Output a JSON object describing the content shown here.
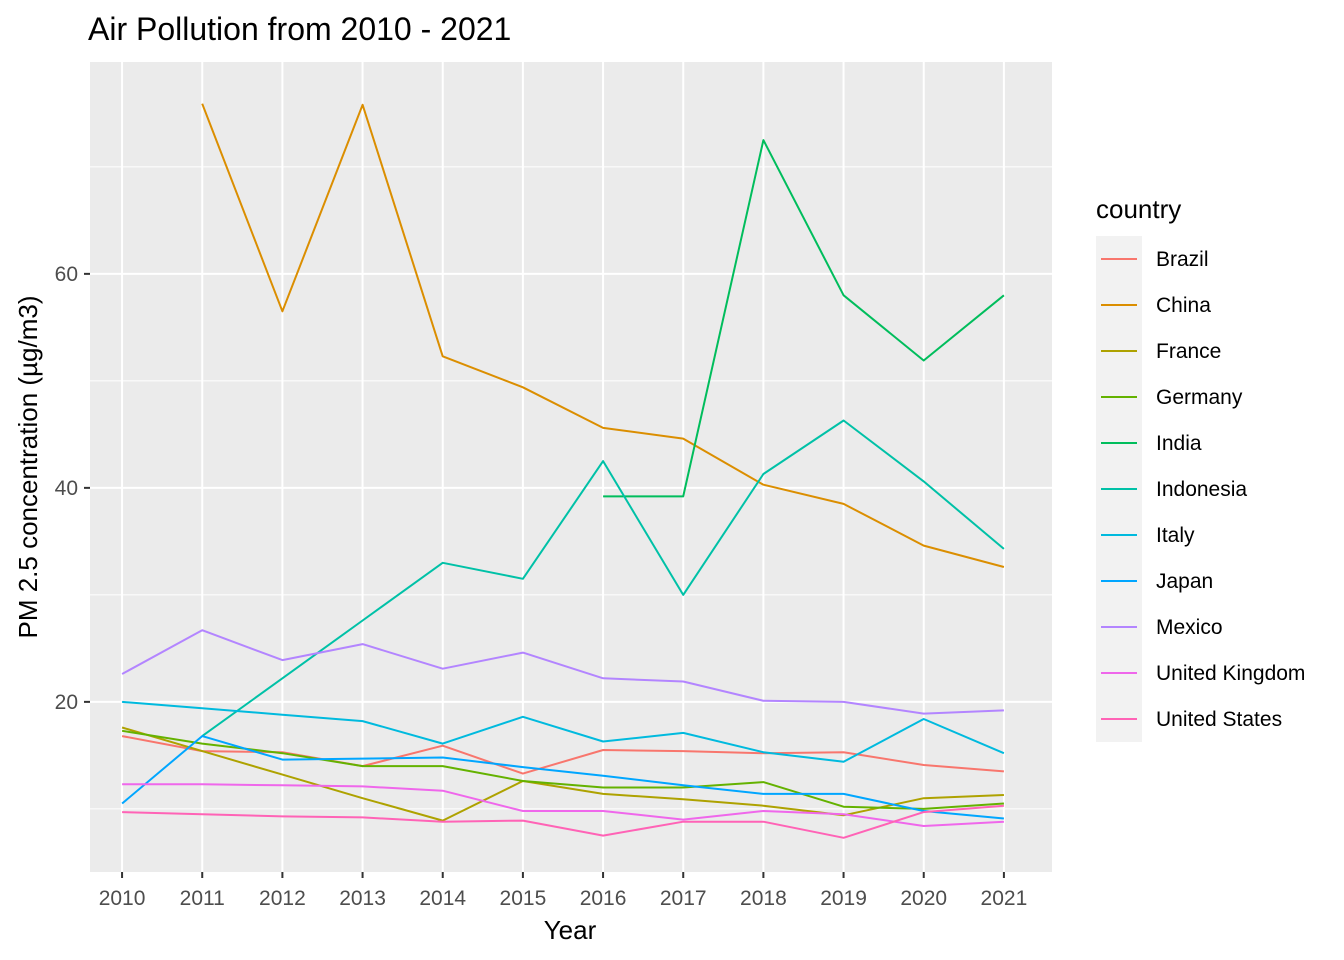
{
  "chart_data": {
    "type": "line",
    "title": "Air Pollution from 2010 - 2021",
    "xlabel": "Year",
    "ylabel": "PM 2.5 concentration (µg/m3)",
    "x": [
      2010,
      2011,
      2012,
      2013,
      2014,
      2015,
      2016,
      2017,
      2018,
      2019,
      2020,
      2021
    ],
    "xlim": [
      2009.6,
      2021.6
    ],
    "ylim": [
      4.1,
      79.8
    ],
    "yticks": [
      20,
      40,
      60
    ],
    "grid": true,
    "legend": {
      "title": "country",
      "position": "right"
    },
    "series": [
      {
        "name": "Brazil",
        "color": "#F8766D",
        "values": [
          16.8,
          15.4,
          15.3,
          14.0,
          15.9,
          13.3,
          15.5,
          15.4,
          15.2,
          15.3,
          14.1,
          13.5
        ]
      },
      {
        "name": "China",
        "color": "#DB8E00",
        "values": [
          null,
          75.9,
          56.5,
          75.8,
          52.3,
          49.4,
          45.6,
          44.6,
          40.3,
          38.5,
          34.6,
          32.6
        ]
      },
      {
        "name": "France",
        "color": "#AEA200",
        "values": [
          17.6,
          15.4,
          13.2,
          11.0,
          8.9,
          12.6,
          11.4,
          10.9,
          10.3,
          9.4,
          11.0,
          11.3
        ]
      },
      {
        "name": "Germany",
        "color": "#64B200",
        "values": [
          17.3,
          16.1,
          15.2,
          14.0,
          14.0,
          12.6,
          12.0,
          12.0,
          12.5,
          10.2,
          10.0,
          10.5
        ]
      },
      {
        "name": "India",
        "color": "#00BD5C",
        "values": [
          null,
          null,
          null,
          null,
          null,
          null,
          39.2,
          39.2,
          72.5,
          58.0,
          51.9,
          58.0
        ]
      },
      {
        "name": "Indonesia",
        "color": "#00C1A7",
        "values": [
          null,
          16.8,
          22.2,
          27.6,
          33.0,
          31.5,
          42.5,
          30.0,
          41.3,
          46.3,
          40.6,
          34.3
        ]
      },
      {
        "name": "Italy",
        "color": "#00BADE",
        "values": [
          20.0,
          19.4,
          18.8,
          18.2,
          16.1,
          18.6,
          16.3,
          17.1,
          15.3,
          14.4,
          18.4,
          15.2
        ]
      },
      {
        "name": "Japan",
        "color": "#00A6FF",
        "values": [
          10.5,
          16.8,
          14.6,
          14.7,
          14.8,
          13.9,
          13.1,
          12.2,
          11.4,
          11.4,
          9.8,
          9.1
        ]
      },
      {
        "name": "Mexico",
        "color": "#B385FF",
        "values": [
          22.6,
          26.7,
          23.9,
          25.4,
          23.1,
          24.6,
          22.2,
          21.9,
          20.1,
          20.0,
          18.9,
          19.2
        ]
      },
      {
        "name": "United Kingdom",
        "color": "#EF67EB",
        "values": [
          12.3,
          12.3,
          12.2,
          12.1,
          11.7,
          9.8,
          9.8,
          9.0,
          9.8,
          9.5,
          8.4,
          8.8
        ]
      },
      {
        "name": "United States",
        "color": "#FF63B6",
        "values": [
          9.7,
          9.5,
          9.3,
          9.2,
          8.8,
          8.9,
          7.5,
          8.8,
          8.8,
          7.3,
          9.7,
          10.3
        ]
      }
    ]
  }
}
